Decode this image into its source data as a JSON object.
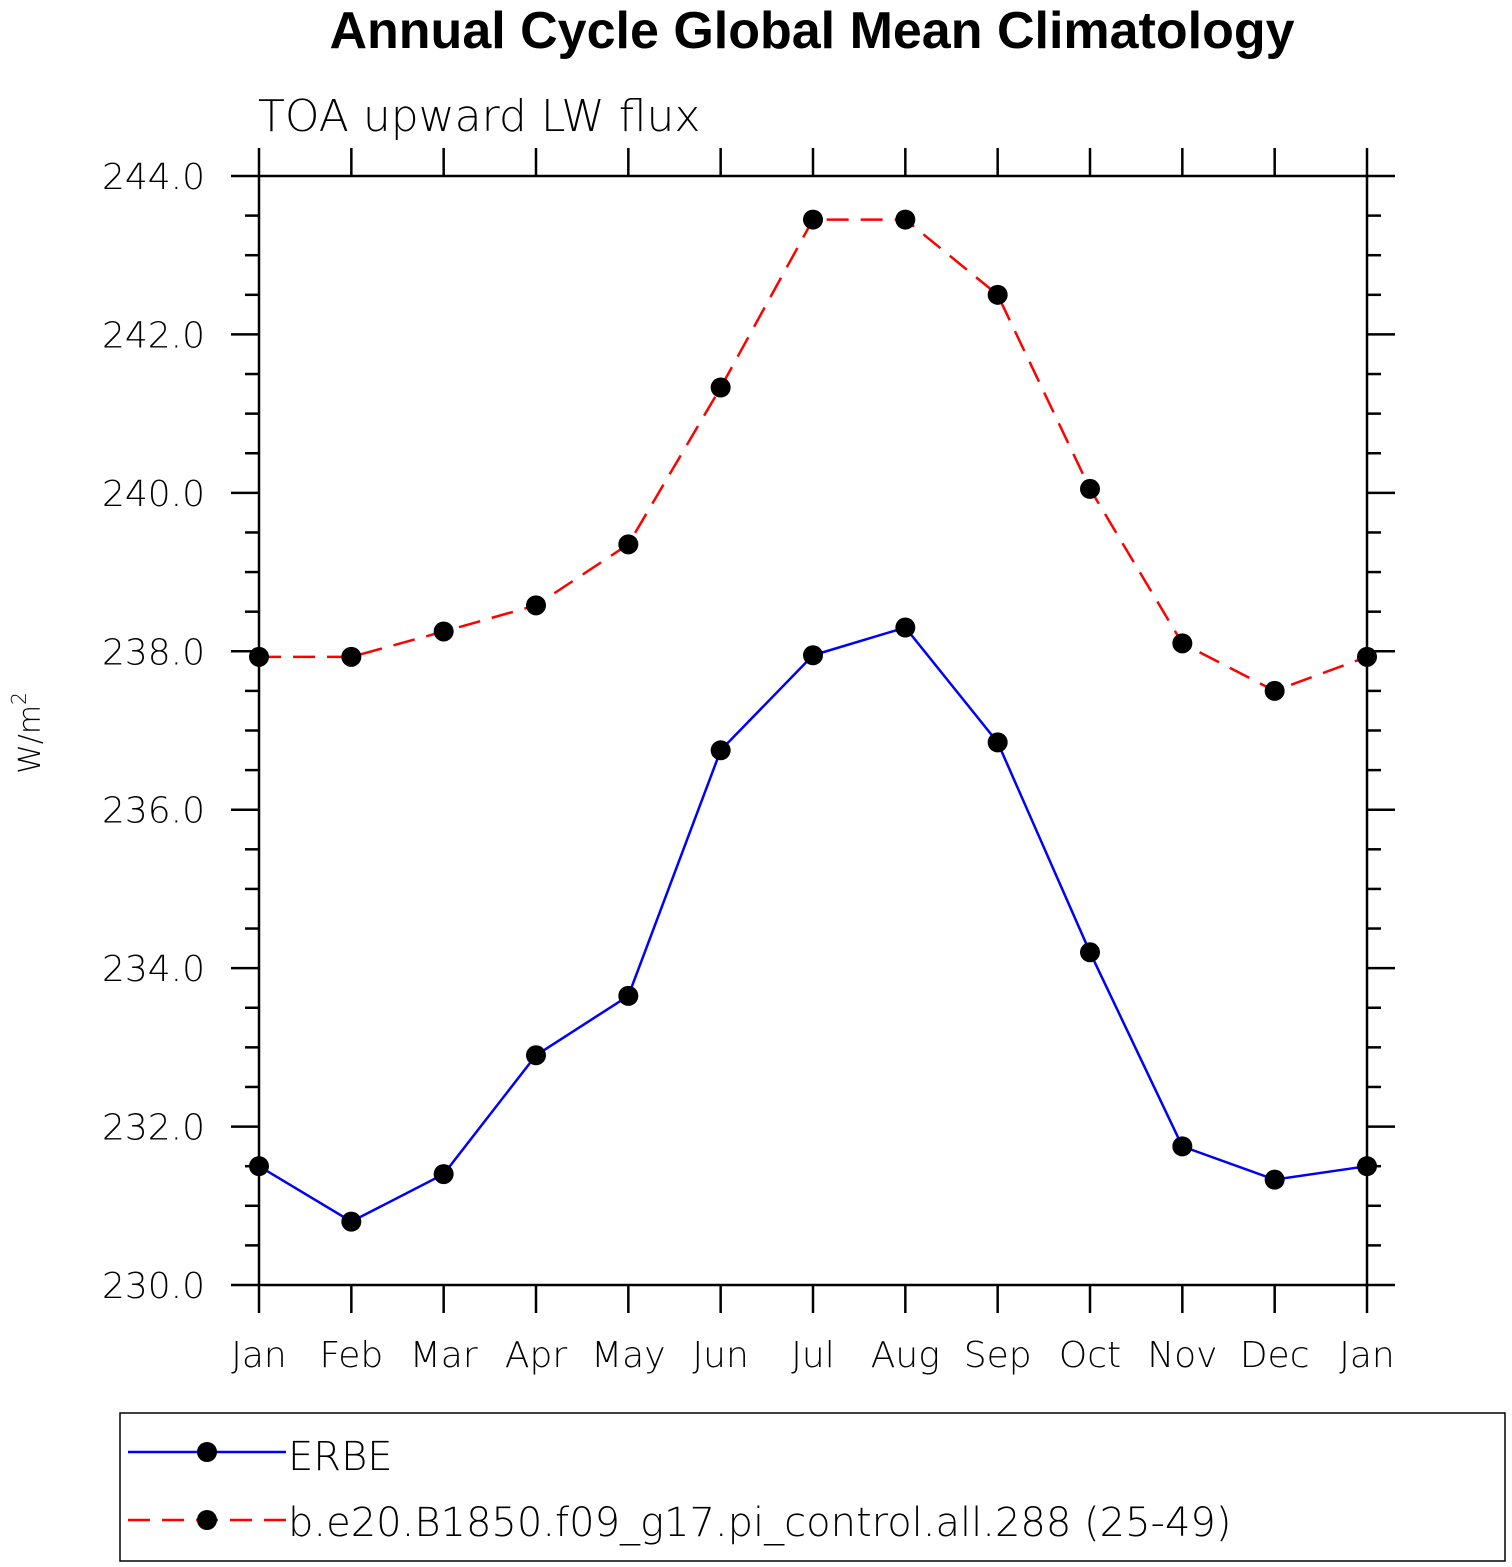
{
  "chart_data": {
    "type": "line",
    "title": "Annual Cycle Global Mean Climatology",
    "subtitle": "TOA upward LW flux",
    "ylabel": "W/m",
    "ylabel_superscript": "2",
    "categories": [
      "Jan",
      "Feb",
      "Mar",
      "Apr",
      "May",
      "Jun",
      "Jul",
      "Aug",
      "Sep",
      "Oct",
      "Nov",
      "Dec",
      "Jan"
    ],
    "ylim": [
      230.0,
      244.0
    ],
    "yticks": [
      "230.0",
      "232.0",
      "234.0",
      "236.0",
      "238.0",
      "240.0",
      "242.0",
      "244.0"
    ],
    "series": [
      {
        "name": "ERBE",
        "color": "#0000ff",
        "style": "solid",
        "marker": "filled-circle",
        "values": [
          231.5,
          230.8,
          231.4,
          232.9,
          233.65,
          236.75,
          237.95,
          238.3,
          236.85,
          234.2,
          231.75,
          231.33,
          231.5
        ]
      },
      {
        "name": "b.e20.B1850.f09_g17.pi_control.all.288 (25-49)",
        "color": "#ff0000",
        "style": "dashed",
        "marker": "filled-circle",
        "values": [
          237.93,
          237.93,
          238.25,
          238.58,
          239.35,
          241.33,
          243.45,
          243.45,
          242.5,
          240.05,
          238.1,
          237.5,
          237.93
        ]
      }
    ],
    "legend_position": "bottom"
  }
}
